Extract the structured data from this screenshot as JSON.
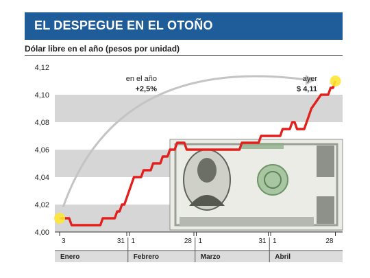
{
  "header": {
    "title": "EL DESPEGUE EN EL OTOÑO"
  },
  "subtitle": "Dólar libre en el año (pesos por unidad)",
  "chart_data": {
    "type": "line",
    "title": "EL DESPEGUE EN EL OTOÑO",
    "subtitle": "Dólar libre en el año (pesos por unidad)",
    "ylim": [
      4.0,
      4.12
    ],
    "yticks": [
      "4,00",
      "4,02",
      "4,04",
      "4,06",
      "4,08",
      "4,10",
      "4,12"
    ],
    "ytick_values": [
      4.0,
      4.02,
      4.04,
      4.06,
      4.08,
      4.1,
      4.12
    ],
    "x_tick_labels": [
      "3",
      "31",
      "1",
      "28",
      "1",
      "31",
      "1",
      "28"
    ],
    "x_tick_days": [
      3,
      31,
      32,
      59,
      60,
      90,
      91,
      118
    ],
    "months": [
      "Enero",
      "Febrero",
      "Marzo",
      "Abril"
    ],
    "month_start_days": [
      1,
      32,
      60,
      91
    ],
    "xlim": [
      1,
      121
    ],
    "series": [
      {
        "values": [
          {
            "x": 3,
            "y": 4.01
          },
          {
            "x": 7,
            "y": 4.01
          },
          {
            "x": 8,
            "y": 4.005
          },
          {
            "x": 20,
            "y": 4.005
          },
          {
            "x": 21,
            "y": 4.01
          },
          {
            "x": 26,
            "y": 4.01
          },
          {
            "x": 27,
            "y": 4.015
          },
          {
            "x": 28,
            "y": 4.015
          },
          {
            "x": 29,
            "y": 4.02
          },
          {
            "x": 30,
            "y": 4.02
          },
          {
            "x": 32,
            "y": 4.03
          },
          {
            "x": 34,
            "y": 4.04
          },
          {
            "x": 37,
            "y": 4.04
          },
          {
            "x": 38,
            "y": 4.045
          },
          {
            "x": 41,
            "y": 4.045
          },
          {
            "x": 42,
            "y": 4.05
          },
          {
            "x": 45,
            "y": 4.05
          },
          {
            "x": 46,
            "y": 4.055
          },
          {
            "x": 48,
            "y": 4.055
          },
          {
            "x": 49,
            "y": 4.06
          },
          {
            "x": 51,
            "y": 4.06
          },
          {
            "x": 52,
            "y": 4.065
          },
          {
            "x": 55,
            "y": 4.065
          },
          {
            "x": 56,
            "y": 4.06
          },
          {
            "x": 78,
            "y": 4.06
          },
          {
            "x": 79,
            "y": 4.065
          },
          {
            "x": 86,
            "y": 4.065
          },
          {
            "x": 87,
            "y": 4.07
          },
          {
            "x": 95,
            "y": 4.07
          },
          {
            "x": 96,
            "y": 4.075
          },
          {
            "x": 99,
            "y": 4.075
          },
          {
            "x": 100,
            "y": 4.08
          },
          {
            "x": 101,
            "y": 4.08
          },
          {
            "x": 102,
            "y": 4.075
          },
          {
            "x": 105,
            "y": 4.075
          },
          {
            "x": 108,
            "y": 4.09
          },
          {
            "x": 112,
            "y": 4.1
          },
          {
            "x": 115,
            "y": 4.1
          },
          {
            "x": 116,
            "y": 4.105
          },
          {
            "x": 117,
            "y": 4.105
          },
          {
            "x": 118,
            "y": 4.11
          }
        ]
      }
    ],
    "annotations": [
      {
        "text": "en el año",
        "value_text": "+2,5%"
      },
      {
        "text": "ayer",
        "value_text": "$ 4,11"
      }
    ],
    "colors": {
      "line": "#e1201e",
      "header": "#1f5c9a",
      "band": "#d6d6d6",
      "marker": "#ffe535",
      "month_band": "#dcdcdc",
      "arrow": "#c4c4c4"
    },
    "grid": true
  }
}
